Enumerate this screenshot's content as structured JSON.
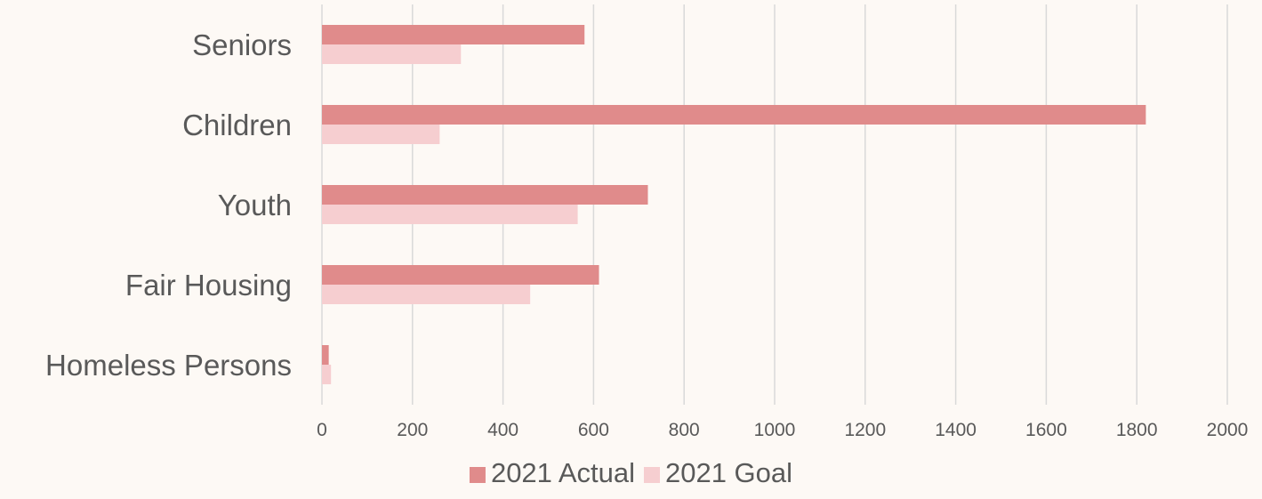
{
  "chart_data": {
    "type": "bar",
    "orientation": "horizontal",
    "categories": [
      "Seniors",
      "Children",
      "Youth",
      "Fair Housing",
      "Homeless Persons"
    ],
    "series": [
      {
        "name": "2021 Actual",
        "values": [
          580,
          1820,
          720,
          612,
          15
        ],
        "color": "#e08b8b"
      },
      {
        "name": "2021 Goal",
        "values": [
          307,
          260,
          565,
          460,
          20
        ],
        "color": "#f6ced0"
      }
    ],
    "xlim": [
      0,
      2000
    ],
    "x_ticks": [
      "0",
      "200",
      "400",
      "600",
      "800",
      "1000",
      "1200",
      "1400",
      "1600",
      "1800",
      "2000"
    ],
    "grid": true,
    "legend_position": "bottom",
    "gridline_color": "#d9d9d9",
    "background_color": "#fdf9f5",
    "text_color": "#595959"
  }
}
